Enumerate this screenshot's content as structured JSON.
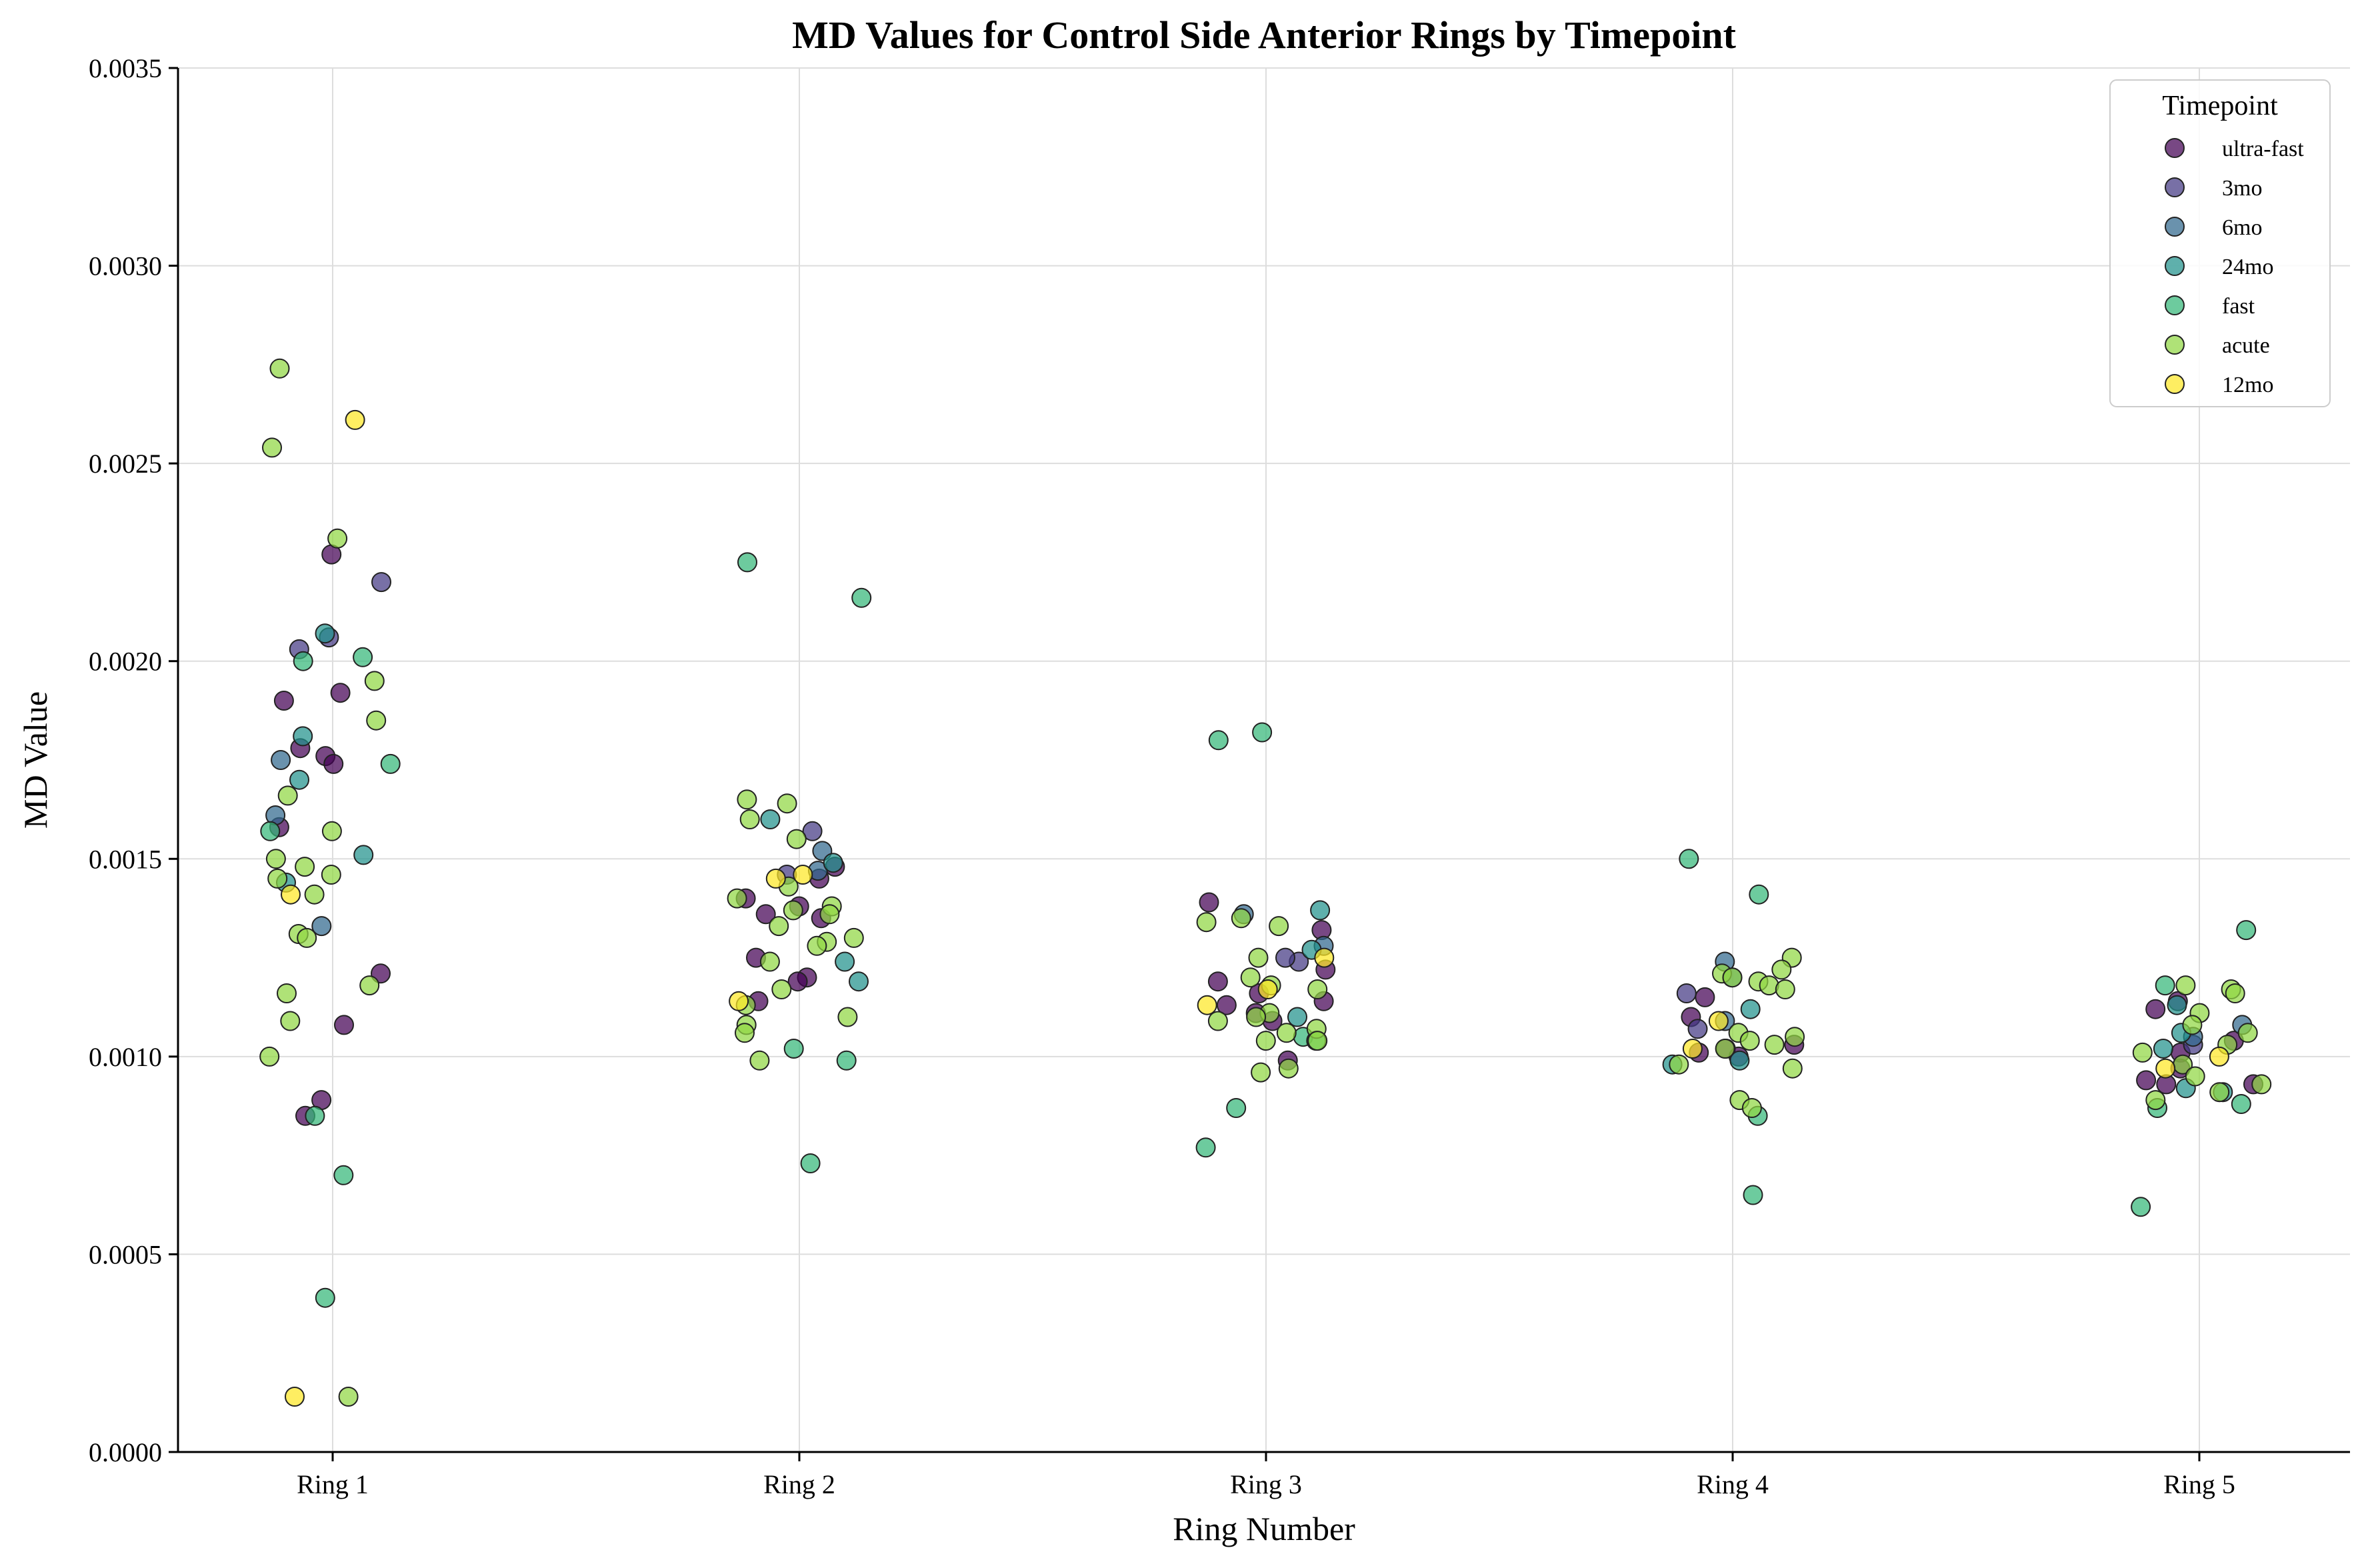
{
  "chart_data": {
    "type": "scatter",
    "title": "MD Values for Control Side Anterior Rings by Timepoint",
    "xlabel": "Ring Number",
    "ylabel": "MD Value",
    "categories": [
      "Ring 1",
      "Ring 2",
      "Ring 3",
      "Ring 4",
      "Ring 5"
    ],
    "ylim": [
      0,
      0.0035
    ],
    "yticks": [
      "0.0000",
      "0.0005",
      "0.0010",
      "0.0015",
      "0.0020",
      "0.0025",
      "0.0030",
      "0.0035"
    ],
    "grid": true,
    "legend": {
      "title": "Timepoint",
      "placement": "top-right"
    },
    "jitter": "points are horizontally jittered around each ring category",
    "series": [
      {
        "name": "ultra-fast",
        "color": "#440154",
        "points": [
          [
            1,
            0.00227
          ],
          [
            1,
            0.00192
          ],
          [
            1,
            0.0019
          ],
          [
            1,
            0.00178
          ],
          [
            1,
            0.00176
          ],
          [
            1,
            0.00174
          ],
          [
            1,
            0.00158
          ],
          [
            1,
            0.00121
          ],
          [
            1,
            0.00108
          ],
          [
            1,
            0.00089
          ],
          [
            1,
            0.00085
          ],
          [
            2,
            0.00148
          ],
          [
            2,
            0.00145
          ],
          [
            2,
            0.0014
          ],
          [
            2,
            0.00138
          ],
          [
            2,
            0.00136
          ],
          [
            2,
            0.00135
          ],
          [
            2,
            0.00125
          ],
          [
            2,
            0.0012
          ],
          [
            2,
            0.00119
          ],
          [
            2,
            0.00114
          ],
          [
            3,
            0.00139
          ],
          [
            3,
            0.00132
          ],
          [
            3,
            0.00122
          ],
          [
            3,
            0.00119
          ],
          [
            3,
            0.00116
          ],
          [
            3,
            0.00114
          ],
          [
            3,
            0.00113
          ],
          [
            3,
            0.00111
          ],
          [
            3,
            0.00109
          ],
          [
            3,
            0.00099
          ],
          [
            4,
            0.00115
          ],
          [
            4,
            0.0011
          ],
          [
            4,
            0.00103
          ],
          [
            4,
            0.00102
          ],
          [
            4,
            0.00101
          ],
          [
            4,
            0.001
          ],
          [
            5,
            0.00114
          ],
          [
            5,
            0.00112
          ],
          [
            5,
            0.00104
          ],
          [
            5,
            0.00101
          ],
          [
            5,
            0.00097
          ],
          [
            5,
            0.00094
          ],
          [
            5,
            0.00093
          ],
          [
            5,
            0.00093
          ]
        ]
      },
      {
        "name": "3mo",
        "color": "#443983",
        "points": [
          [
            1,
            0.0022
          ],
          [
            1,
            0.00206
          ],
          [
            1,
            0.00203
          ],
          [
            2,
            0.00157
          ],
          [
            2,
            0.00146
          ],
          [
            3,
            0.00124
          ],
          [
            3,
            0.00125
          ],
          [
            4,
            0.00116
          ],
          [
            4,
            0.00107
          ],
          [
            5,
            0.00103
          ]
        ]
      },
      {
        "name": "6mo",
        "color": "#31688e",
        "points": [
          [
            1,
            0.00175
          ],
          [
            1,
            0.00161
          ],
          [
            1,
            0.00133
          ],
          [
            2,
            0.00152
          ],
          [
            2,
            0.00147
          ],
          [
            3,
            0.00128
          ],
          [
            3,
            0.00136
          ],
          [
            4,
            0.00124
          ],
          [
            4,
            0.0012
          ],
          [
            4,
            0.00109
          ],
          [
            5,
            0.00108
          ],
          [
            5,
            0.00105
          ]
        ]
      },
      {
        "name": "24mo",
        "color": "#21918c",
        "points": [
          [
            1,
            0.00207
          ],
          [
            1,
            0.00181
          ],
          [
            1,
            0.0017
          ],
          [
            1,
            0.00151
          ],
          [
            1,
            0.00144
          ],
          [
            2,
            0.0016
          ],
          [
            2,
            0.00149
          ],
          [
            2,
            0.00124
          ],
          [
            2,
            0.00119
          ],
          [
            3,
            0.00137
          ],
          [
            3,
            0.00127
          ],
          [
            3,
            0.0011
          ],
          [
            4,
            0.00112
          ],
          [
            4,
            0.00099
          ],
          [
            4,
            0.00098
          ],
          [
            5,
            0.00113
          ],
          [
            5,
            0.00106
          ],
          [
            5,
            0.00102
          ],
          [
            5,
            0.00092
          ],
          [
            5,
            0.00091
          ]
        ]
      },
      {
        "name": "fast",
        "color": "#35b779",
        "points": [
          [
            1,
            0.00201
          ],
          [
            1,
            0.002
          ],
          [
            1,
            0.00174
          ],
          [
            1,
            0.00157
          ],
          [
            1,
            0.00085
          ],
          [
            1,
            0.0007
          ],
          [
            1,
            0.00039
          ],
          [
            2,
            0.00225
          ],
          [
            2,
            0.00216
          ],
          [
            2,
            0.00102
          ],
          [
            2,
            0.00099
          ],
          [
            2,
            0.00073
          ],
          [
            3,
            0.00182
          ],
          [
            3,
            0.0018
          ],
          [
            3,
            0.00105
          ],
          [
            3,
            0.00104
          ],
          [
            3,
            0.00087
          ],
          [
            3,
            0.00077
          ],
          [
            4,
            0.0015
          ],
          [
            4,
            0.00141
          ],
          [
            4,
            0.00085
          ],
          [
            4,
            0.00065
          ],
          [
            5,
            0.00132
          ],
          [
            5,
            0.00118
          ],
          [
            5,
            0.00088
          ],
          [
            5,
            0.00087
          ],
          [
            5,
            0.00062
          ]
        ]
      },
      {
        "name": "acute",
        "color": "#90d743",
        "points": [
          [
            1,
            0.00274
          ],
          [
            1,
            0.00254
          ],
          [
            1,
            0.00231
          ],
          [
            1,
            0.00195
          ],
          [
            1,
            0.00185
          ],
          [
            1,
            0.00166
          ],
          [
            1,
            0.00157
          ],
          [
            1,
            0.0015
          ],
          [
            1,
            0.00148
          ],
          [
            1,
            0.00146
          ],
          [
            1,
            0.00145
          ],
          [
            1,
            0.00141
          ],
          [
            1,
            0.00131
          ],
          [
            1,
            0.0013
          ],
          [
            1,
            0.00118
          ],
          [
            1,
            0.00116
          ],
          [
            1,
            0.00109
          ],
          [
            1,
            0.001
          ],
          [
            1,
            0.00014
          ],
          [
            2,
            0.00165
          ],
          [
            2,
            0.00164
          ],
          [
            2,
            0.0016
          ],
          [
            2,
            0.00155
          ],
          [
            2,
            0.00143
          ],
          [
            2,
            0.0014
          ],
          [
            2,
            0.00138
          ],
          [
            2,
            0.00137
          ],
          [
            2,
            0.00136
          ],
          [
            2,
            0.00133
          ],
          [
            2,
            0.0013
          ],
          [
            2,
            0.00129
          ],
          [
            2,
            0.00128
          ],
          [
            2,
            0.00124
          ],
          [
            2,
            0.00117
          ],
          [
            2,
            0.00113
          ],
          [
            2,
            0.0011
          ],
          [
            2,
            0.00108
          ],
          [
            2,
            0.00106
          ],
          [
            2,
            0.00099
          ],
          [
            3,
            0.00135
          ],
          [
            3,
            0.00134
          ],
          [
            3,
            0.00133
          ],
          [
            3,
            0.00125
          ],
          [
            3,
            0.0012
          ],
          [
            3,
            0.00118
          ],
          [
            3,
            0.00117
          ],
          [
            3,
            0.00111
          ],
          [
            3,
            0.0011
          ],
          [
            3,
            0.00109
          ],
          [
            3,
            0.00107
          ],
          [
            3,
            0.00106
          ],
          [
            3,
            0.00104
          ],
          [
            3,
            0.00104
          ],
          [
            3,
            0.00097
          ],
          [
            3,
            0.00096
          ],
          [
            4,
            0.00125
          ],
          [
            4,
            0.00122
          ],
          [
            4,
            0.00121
          ],
          [
            4,
            0.0012
          ],
          [
            4,
            0.00119
          ],
          [
            4,
            0.00118
          ],
          [
            4,
            0.00117
          ],
          [
            4,
            0.00106
          ],
          [
            4,
            0.00105
          ],
          [
            4,
            0.00104
          ],
          [
            4,
            0.00103
          ],
          [
            4,
            0.00102
          ],
          [
            4,
            0.00098
          ],
          [
            4,
            0.00097
          ],
          [
            4,
            0.00089
          ],
          [
            4,
            0.00087
          ],
          [
            5,
            0.00118
          ],
          [
            5,
            0.00117
          ],
          [
            5,
            0.00116
          ],
          [
            5,
            0.00111
          ],
          [
            5,
            0.00108
          ],
          [
            5,
            0.00106
          ],
          [
            5,
            0.00103
          ],
          [
            5,
            0.00101
          ],
          [
            5,
            0.00098
          ],
          [
            5,
            0.00095
          ],
          [
            5,
            0.00093
          ],
          [
            5,
            0.00091
          ],
          [
            5,
            0.00089
          ]
        ]
      },
      {
        "name": "12mo",
        "color": "#fde725",
        "points": [
          [
            1,
            0.00261
          ],
          [
            1,
            0.00141
          ],
          [
            1,
            0.00014
          ],
          [
            2,
            0.00146
          ],
          [
            2,
            0.00145
          ],
          [
            2,
            0.00114
          ],
          [
            3,
            0.00125
          ],
          [
            3,
            0.00117
          ],
          [
            3,
            0.00113
          ],
          [
            4,
            0.00109
          ],
          [
            4,
            0.00102
          ],
          [
            5,
            0.001
          ],
          [
            5,
            0.00097
          ]
        ]
      }
    ]
  }
}
